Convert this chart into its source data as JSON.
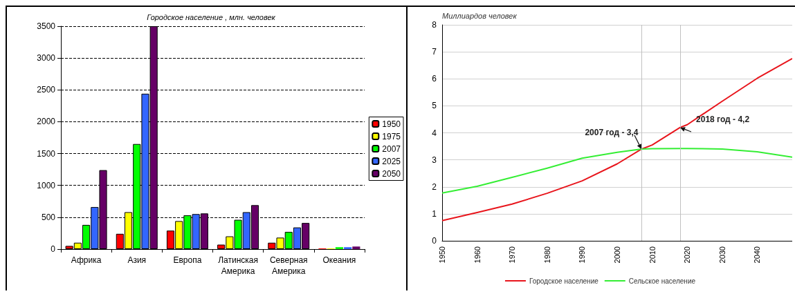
{
  "chart_data": [
    {
      "type": "bar",
      "title": "Городское население , млн. человек",
      "categories": [
        "Африка",
        "Азия",
        "Европа",
        "Латинская Америка",
        "Северная Америка",
        "Океания"
      ],
      "series": [
        {
          "name": "1950",
          "color": "#ff0000",
          "values": [
            50,
            240,
            290,
            70,
            100,
            10
          ]
        },
        {
          "name": "1975",
          "color": "#ffff00",
          "values": [
            100,
            580,
            440,
            200,
            180,
            10
          ]
        },
        {
          "name": "2007",
          "color": "#00ff00",
          "values": [
            380,
            1650,
            530,
            460,
            270,
            30
          ]
        },
        {
          "name": "2025",
          "color": "#3366ff",
          "values": [
            660,
            2440,
            550,
            580,
            340,
            30
          ]
        },
        {
          "name": "2050",
          "color": "#660066",
          "values": [
            1240,
            3500,
            560,
            690,
            410,
            40
          ]
        }
      ],
      "ylim": [
        0,
        3500
      ],
      "yticks": [
        0,
        500,
        1000,
        1500,
        2000,
        2500,
        3000,
        3500
      ],
      "grid": "y",
      "line_style": "dashed",
      "legend": "right"
    },
    {
      "type": "line",
      "ylabel": "Миллиардов человек",
      "x": [
        1950,
        1960,
        1970,
        1980,
        1990,
        2000,
        2007,
        2010,
        2018,
        2020,
        2030,
        2040,
        2050
      ],
      "series": [
        {
          "name": "Городское население",
          "color": "#e8141b",
          "values": [
            0.75,
            1.05,
            1.36,
            1.76,
            2.22,
            2.85,
            3.4,
            3.55,
            4.2,
            4.3,
            5.17,
            6.02,
            6.75
          ]
        },
        {
          "name": "Сельское население",
          "color": "#33ee33",
          "values": [
            1.77,
            2.02,
            2.35,
            2.69,
            3.06,
            3.28,
            3.4,
            3.41,
            3.42,
            3.42,
            3.4,
            3.3,
            3.1
          ]
        }
      ],
      "xlim": [
        1950,
        2050
      ],
      "xticks": [
        1950,
        1960,
        1970,
        1980,
        1990,
        2000,
        2010,
        2020,
        2030,
        2040
      ],
      "ylim": [
        0,
        8
      ],
      "yticks": [
        0,
        1,
        2,
        3,
        4,
        5,
        6,
        7,
        8
      ],
      "grid": "y",
      "legend": "bottom",
      "ref_lines": [
        {
          "axis": "x",
          "value": 2007,
          "label": null,
          "color": "#c0c0c0"
        },
        {
          "axis": "x",
          "value": 2018,
          "label": null,
          "color": "#c0c0c0"
        }
      ],
      "annotations": [
        {
          "text": "2007 год - 3,4",
          "x": 2007,
          "y": 3.4
        },
        {
          "text": "2018 год - 4,2",
          "x": 2018,
          "y": 4.2
        }
      ]
    }
  ]
}
